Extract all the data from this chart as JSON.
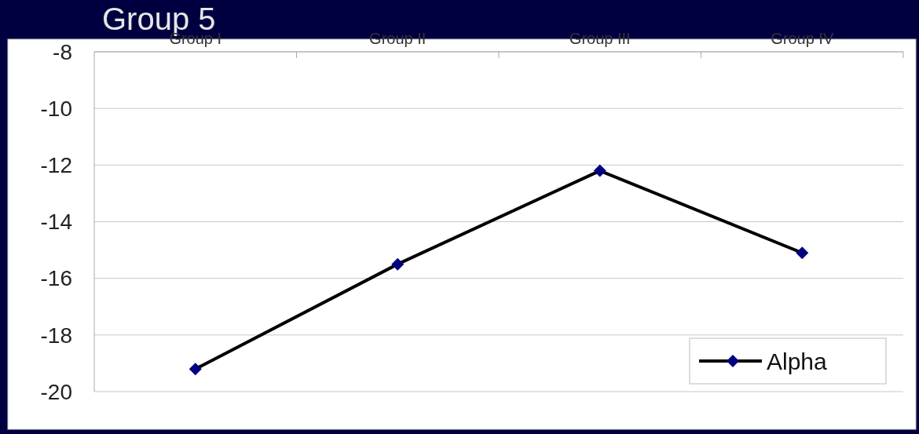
{
  "chart_data": {
    "type": "line",
    "title": "Group 5",
    "categories": [
      "Group I",
      "Group II",
      "Group III",
      "Group IV"
    ],
    "series": [
      {
        "name": "Alpha",
        "color": "#000000",
        "values": [
          -19.2,
          -15.5,
          -12.2,
          -15.1
        ]
      }
    ],
    "ylim": [
      -20,
      -8
    ],
    "yticks": [
      -20,
      -18,
      -16,
      -14,
      -12,
      -10,
      -8
    ],
    "grid": "y",
    "legend": "bottom right",
    "marker": "diamond",
    "line_style": "solid"
  }
}
